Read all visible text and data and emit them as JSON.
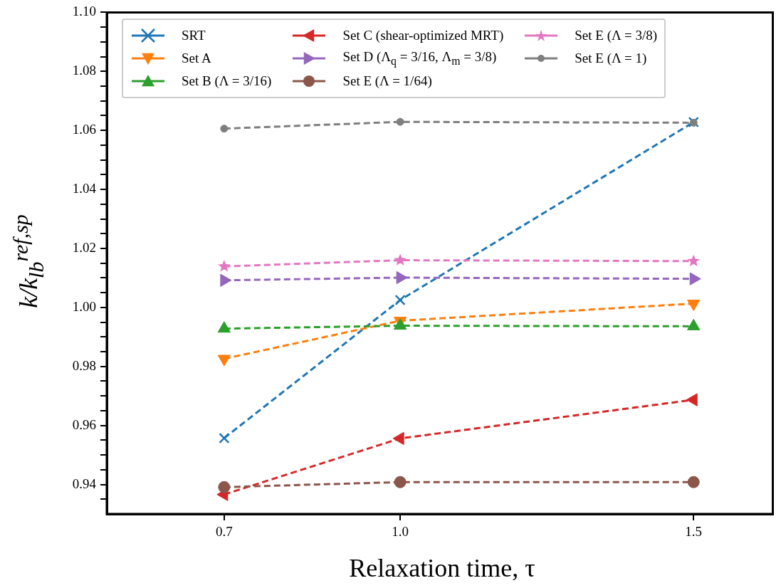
{
  "chart_data": {
    "type": "line",
    "xlabel": "Relaxation time, τ",
    "ylabel": "k/k$_{lb}$$^{ref,sp}$",
    "x": [
      0.7,
      1.0,
      1.5
    ],
    "xlim": [
      0.5,
      1.635
    ],
    "xticks": [
      0.7,
      {
        "value": 1.0,
        "label": "1.0"
      },
      1.5
    ],
    "ylim": [
      0.93,
      1.1
    ],
    "yticks": [
      {
        "value": 0.935,
        "label": null
      },
      {
        "value": 0.94,
        "label": "0.94"
      },
      {
        "value": 0.945,
        "label": null
      },
      {
        "value": 0.95,
        "label": null
      },
      {
        "value": 0.955,
        "label": null
      },
      {
        "value": 0.96,
        "label": "0.96"
      },
      {
        "value": 0.965,
        "label": null
      },
      {
        "value": 0.97,
        "label": null
      },
      {
        "value": 0.975,
        "label": null
      },
      {
        "value": 0.98,
        "label": "0.98"
      },
      {
        "value": 0.985,
        "label": null
      },
      {
        "value": 0.99,
        "label": null
      },
      {
        "value": 0.995,
        "label": null
      },
      {
        "value": 1.0,
        "label": "1.00"
      },
      {
        "value": 1.005,
        "label": null
      },
      {
        "value": 1.01,
        "label": null
      },
      {
        "value": 1.015,
        "label": null
      },
      {
        "value": 1.02,
        "label": "1.02"
      },
      {
        "value": 1.025,
        "label": null
      },
      {
        "value": 1.03,
        "label": null
      },
      {
        "value": 1.035,
        "label": null
      },
      {
        "value": 1.04,
        "label": "1.04"
      },
      {
        "value": 1.045,
        "label": null
      },
      {
        "value": 1.05,
        "label": null
      },
      {
        "value": 1.055,
        "label": null
      },
      {
        "value": 1.06,
        "label": "1.06"
      },
      {
        "value": 1.065,
        "label": null
      },
      {
        "value": 1.07,
        "label": null
      },
      {
        "value": 1.075,
        "label": null
      },
      {
        "value": 1.08,
        "label": "1.08"
      },
      {
        "value": 1.085,
        "label": null
      },
      {
        "value": 1.09,
        "label": null
      },
      {
        "value": 1.095,
        "label": null
      },
      {
        "value": 1.1,
        "label": "1.10"
      }
    ],
    "grid": false,
    "legend": "top left",
    "line_style": "dashed",
    "series": [
      {
        "name": "SRT",
        "color": "#1f77b4",
        "marker": "cross",
        "values": [
          0.9557,
          1.0025,
          1.0628
        ]
      },
      {
        "name": "Set A",
        "color": "#ff7f0e",
        "marker": "triangle-down",
        "values": [
          0.9826,
          0.9955,
          1.0013
        ]
      },
      {
        "name": "Set B (Λ = 3/16)",
        "color": "#2ca02c",
        "marker": "triangle",
        "values": [
          0.9928,
          0.9938,
          0.9936
        ]
      },
      {
        "name": "Set C (shear-optimized MRT)",
        "color": "#d62728",
        "marker": "triangle-left",
        "values": [
          0.9366,
          0.9556,
          0.9687
        ]
      },
      {
        "name": "Set D (Λ$_{q}$ = 3/16, Λ$_{m}$ = 3/8)",
        "color": "#9467bd",
        "marker": "triangle-right",
        "values": [
          1.0092,
          1.0101,
          1.0097
        ]
      },
      {
        "name": "Set E (Λ = 1/64)",
        "color": "#8c564b",
        "marker": "circle",
        "values": [
          0.9391,
          0.9408,
          0.9408
        ]
      },
      {
        "name": "Set E (Λ = 3/8)",
        "color": "#e377c2",
        "marker": "star",
        "values": [
          1.0139,
          1.016,
          1.0157
        ]
      },
      {
        "name": "Set E (Λ = 1)",
        "color": "#7f7f7f",
        "marker": "circle",
        "values": [
          1.0606,
          1.0629,
          1.0626
        ]
      }
    ]
  }
}
